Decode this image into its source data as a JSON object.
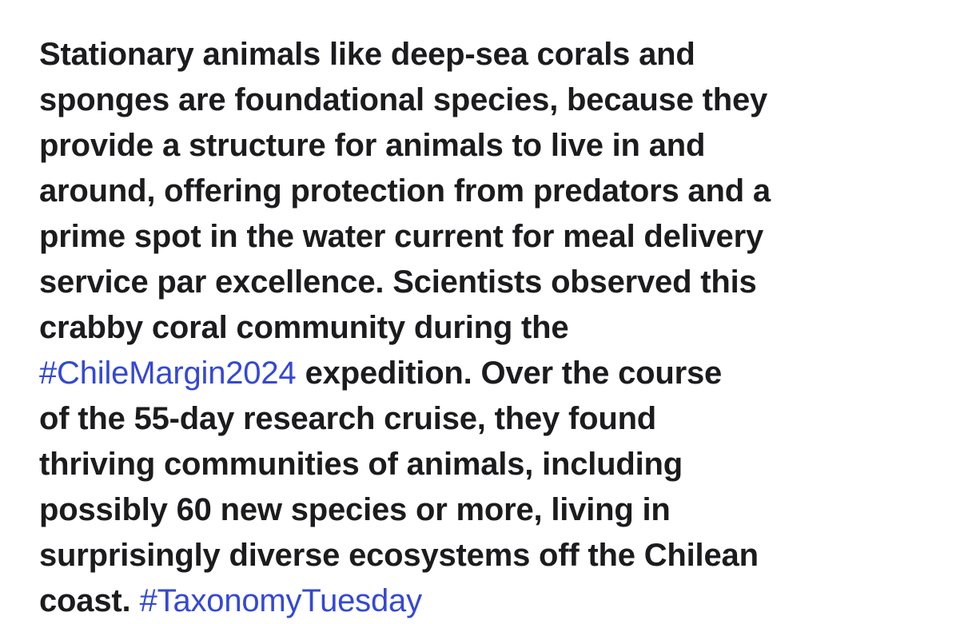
{
  "post": {
    "lines": [
      [
        "Stationary animals like deep-sea corals and"
      ],
      [
        "sponges are foundational species, because they"
      ],
      [
        "provide a structure for animals to live in and"
      ],
      [
        "around, offering protection from predators and a"
      ],
      [
        "prime spot in the water current for meal delivery"
      ],
      [
        "service par excellence. Scientists observed this"
      ],
      [
        "crabby coral community during the"
      ],
      [
        "#ChileMargin2024",
        "expedition. Over the course"
      ],
      [
        "of the 55-day research cruise, they found"
      ],
      [
        "thriving communities of animals, including"
      ],
      [
        "possibly 60 new species or more, living in"
      ],
      [
        "surprisingly diverse ecosystems off the Chilean"
      ],
      [
        "coast.",
        "#TaxonomyTuesday"
      ]
    ]
  }
}
